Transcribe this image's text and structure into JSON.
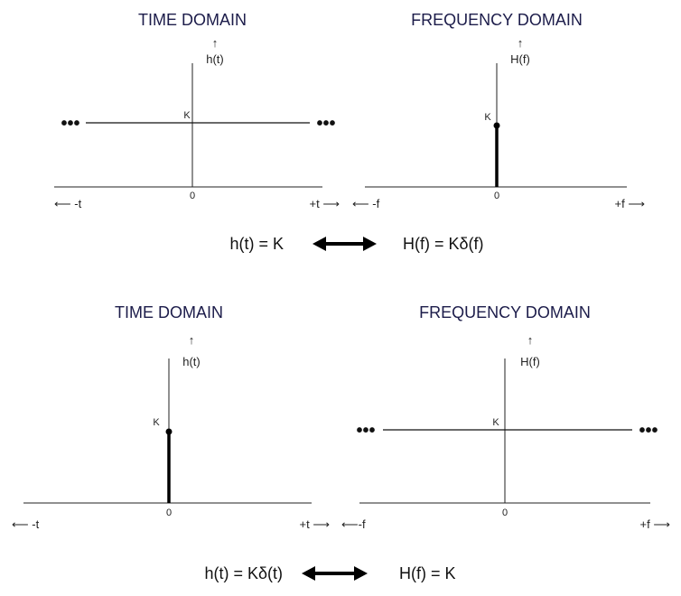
{
  "panels": {
    "top_left": {
      "title": "TIME DOMAIN",
      "ylabel": "h(t)",
      "up_arrow": "↑",
      "k_label": "K",
      "zero_label": "0",
      "neg_label": "⟵ -t",
      "pos_label": "+t ⟶",
      "left_dots": "•••",
      "right_dots": "•••"
    },
    "top_right": {
      "title": "FREQUENCY DOMAIN",
      "ylabel": "H(f)",
      "up_arrow": "↑",
      "k_label": "K",
      "zero_label": "0",
      "neg_label": "⟵ -f",
      "pos_label": "+f ⟶"
    },
    "bottom_left": {
      "title": "TIME DOMAIN",
      "ylabel": "h(t)",
      "up_arrow": "↑",
      "k_label": "K",
      "zero_label": "0",
      "neg_label": "⟵ -t",
      "pos_label": "+t ⟶"
    },
    "bottom_right": {
      "title": "FREQUENCY DOMAIN",
      "ylabel": "H(f)",
      "up_arrow": "↑",
      "k_label": "K",
      "zero_label": "0",
      "neg_label": "⟵-f",
      "pos_label": "+f ⟶",
      "left_dots": "•••",
      "right_dots": "•••"
    }
  },
  "equations": {
    "top_left": "h(t) = K",
    "top_right": "H(f) = Kδ(f)",
    "bottom_left": "h(t) = Kδ(t)",
    "bottom_right": "H(f) = K"
  }
}
